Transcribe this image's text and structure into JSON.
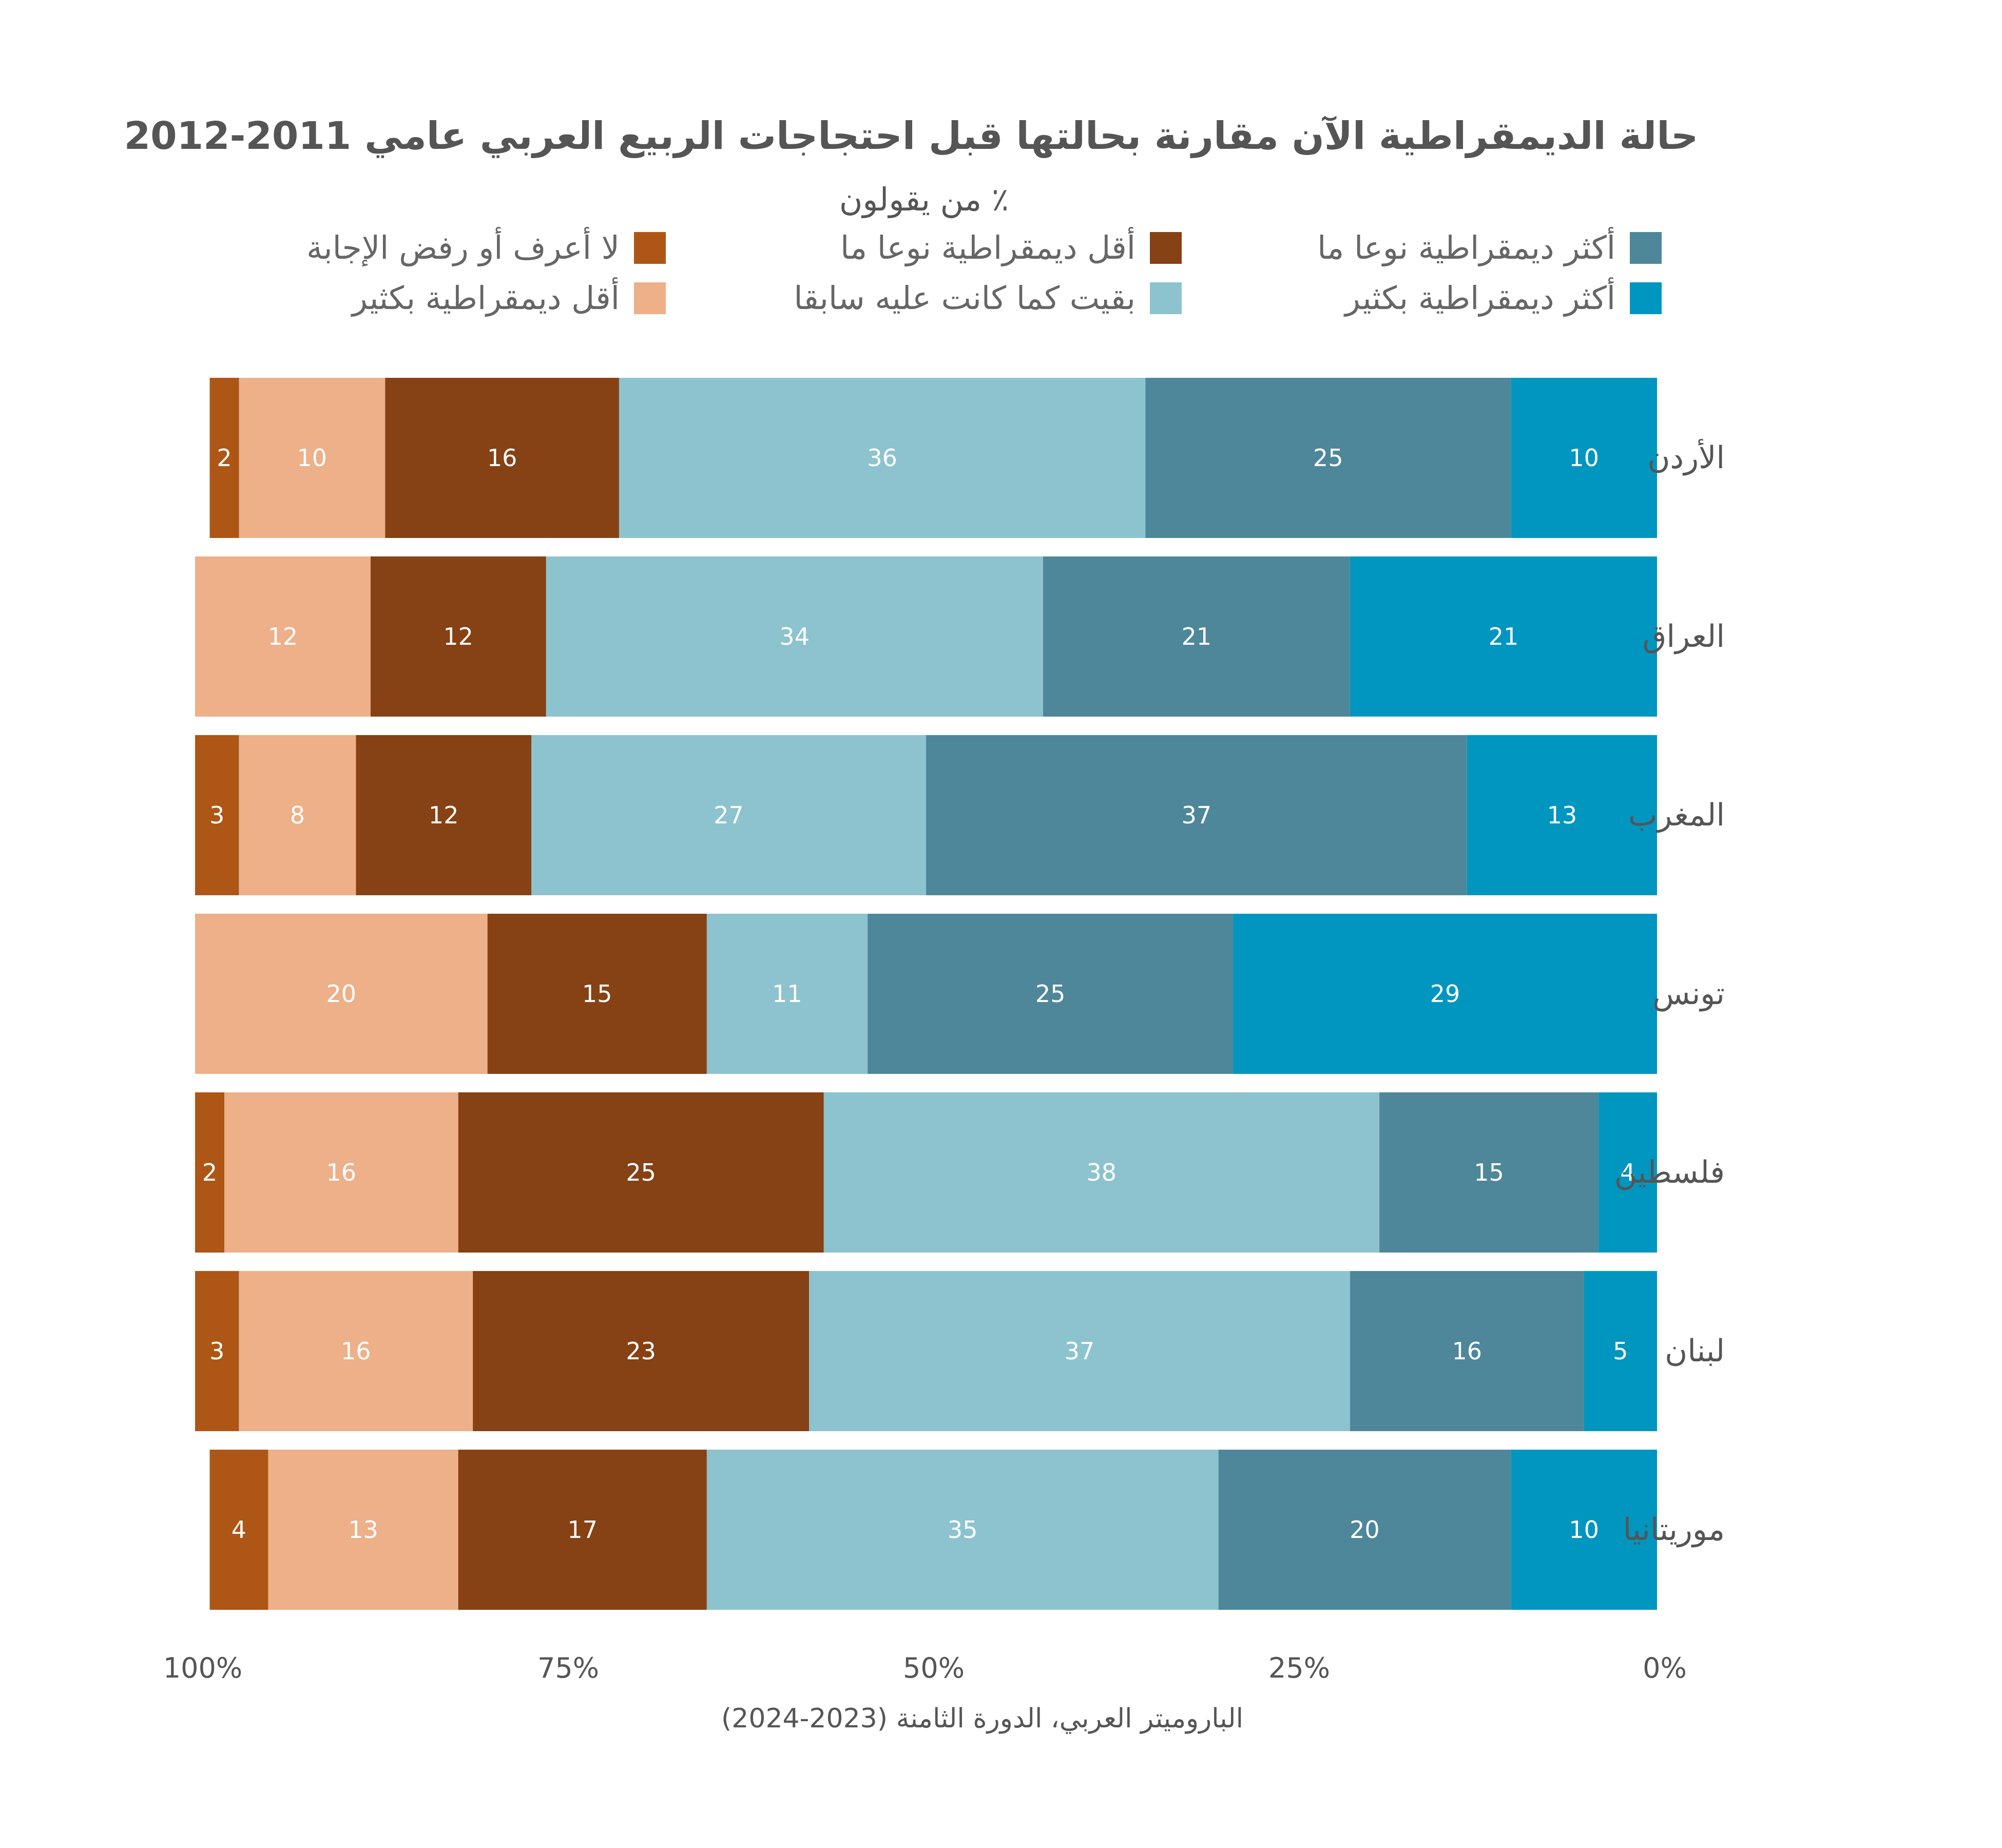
{
  "chart_data": {
    "type": "bar",
    "orientation": "horizontal",
    "stacked": true,
    "title": "حالة الديمقراطية الآن مقارنة بحالتها قبل احتجاجات الربيع العربي عامي 2011-2012",
    "subtitle": "٪ من يقولون",
    "source": "الباروميتر العربي، الدورة الثامنة (2023-2024)",
    "x_axis": {
      "reversed": true,
      "range": [
        0,
        100
      ],
      "ticks": [
        "0%",
        "25%",
        "50%",
        "75%",
        "100%"
      ],
      "tick_values": [
        0,
        25,
        50,
        75,
        100
      ]
    },
    "legend_position": "top",
    "categories": [
      "الأردن",
      "العراق",
      "المغرب",
      "تونس",
      "فلسطين",
      "لبنان",
      "موريتانيا"
    ],
    "series": [
      {
        "name": "أكثر ديمقراطية بكثير",
        "color": "#0096C0",
        "values": [
          10,
          21,
          13,
          29,
          4,
          5,
          10
        ]
      },
      {
        "name": "أكثر ديمقراطية نوعا ما",
        "color": "#4E8799",
        "values": [
          25,
          21,
          37,
          25,
          15,
          16,
          20
        ]
      },
      {
        "name": "بقيت كما كانت عليه سابقا",
        "color": "#8CC3CE",
        "values": [
          36,
          34,
          27,
          11,
          38,
          37,
          35
        ]
      },
      {
        "name": "أقل ديمقراطية نوعا ما",
        "color": "#864114",
        "values": [
          16,
          12,
          12,
          15,
          25,
          23,
          17
        ]
      },
      {
        "name": "أقل ديمقراطية بكثير",
        "color": "#EDB088",
        "values": [
          10,
          12,
          8,
          20,
          16,
          16,
          13
        ]
      },
      {
        "name": "لا أعرف أو رفض الإجابة",
        "color": "#AE5615",
        "values": [
          2,
          0,
          3,
          0,
          2,
          3,
          4
        ]
      }
    ]
  }
}
